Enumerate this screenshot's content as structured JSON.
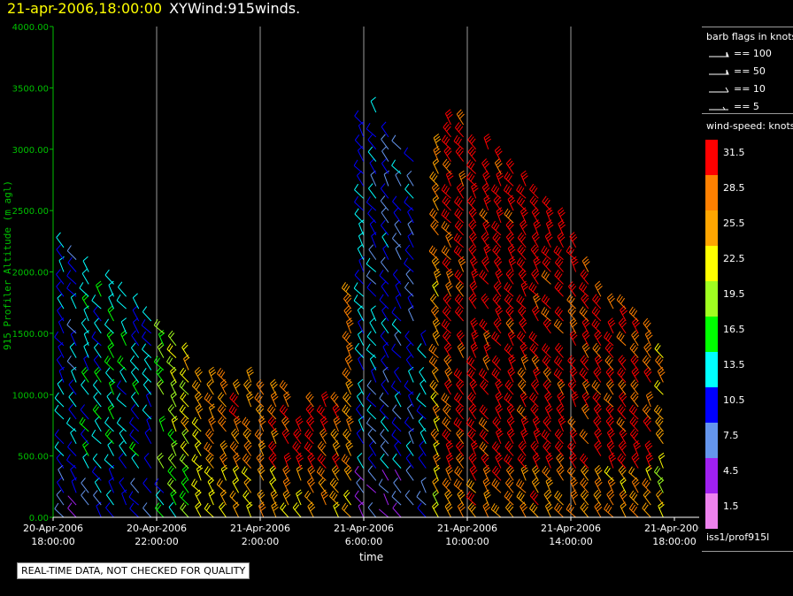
{
  "header": {
    "date_text": "21-apr-2006,18:00:00",
    "product_text": "XYWind:915winds."
  },
  "legend": {
    "barb_title": "barb flags in knots",
    "barb_entries": [
      {
        "label": "== 100",
        "knots": 100
      },
      {
        "label": "== 50",
        "knots": 50
      },
      {
        "label": "== 10",
        "knots": 10
      },
      {
        "label": "== 5",
        "knots": 5
      }
    ],
    "speed_title": "wind-speed: knots",
    "speed_scale": [
      {
        "label": "31.5",
        "color": "#ff0000"
      },
      {
        "label": "28.5",
        "color": "#ff8000"
      },
      {
        "label": "25.5",
        "color": "#ffa500"
      },
      {
        "label": "22.5",
        "color": "#ffff00"
      },
      {
        "label": "19.5",
        "color": "#a0ff20"
      },
      {
        "label": "16.5",
        "color": "#00ff00"
      },
      {
        "label": "13.5",
        "color": "#00ffff"
      },
      {
        "label": "10.5",
        "color": "#0000ff"
      },
      {
        "label": "7.5",
        "color": "#6495ed"
      },
      {
        "label": "4.5",
        "color": "#a020f0"
      },
      {
        "label": "1.5",
        "color": "#ee82ee"
      }
    ],
    "source": "iss1/prof915l"
  },
  "disclaimer": "REAL-TIME DATA, NOT CHECKED FOR QUALITY",
  "chart_data": {
    "type": "wind-barb time-height",
    "ylabel": "915 Profiler Altitude (m agl)",
    "xlabel": "time",
    "ylim": [
      0,
      4000
    ],
    "y_ticks": [
      "0.00",
      "500.00",
      "1000.00",
      "1500.00",
      "2000.00",
      "2500.00",
      "3000.00",
      "3500.00",
      "4000.00"
    ],
    "x_range": [
      "2006-04-20T18:00",
      "2006-04-21T18:00"
    ],
    "x_ticks": [
      {
        "date": "20-Apr-2006",
        "time": "18:00:00"
      },
      {
        "date": "20-Apr-2006",
        "time": "22:00:00"
      },
      {
        "date": "21-Apr-2006",
        "time": "2:00:00"
      },
      {
        "date": "21-Apr-2006",
        "time": "6:00:00"
      },
      {
        "date": "21-Apr-2006",
        "time": "10:00:00"
      },
      {
        "date": "21-Apr-2006",
        "time": "14:00:00"
      },
      {
        "date": "21-Apr-2006",
        "time": "18:00:00"
      }
    ],
    "vertical_gridlines": true,
    "colors": {
      "axis": "#00c000",
      "grid": "#9a9a9a",
      "background": "#000000"
    },
    "profile_interval_hours": 0.5,
    "profiles_dominant_speed_knots": [
      12,
      11,
      13,
      14,
      15,
      14,
      13,
      12,
      18,
      20,
      23,
      25,
      27,
      27,
      28,
      28,
      29,
      29,
      30,
      30,
      31,
      31,
      29,
      28,
      12,
      11,
      10,
      10,
      10,
      12,
      26,
      31,
      32,
      32,
      32,
      32,
      32,
      32,
      32,
      32,
      32,
      32,
      31,
      31,
      30,
      30,
      31,
      30,
      26
    ],
    "profiles_top_altitude_m": [
      2200,
      2100,
      2000,
      1900,
      1900,
      1800,
      1700,
      1600,
      1500,
      1400,
      1300,
      1200,
      1150,
      1100,
      1100,
      1100,
      1050,
      1000,
      1000,
      950,
      900,
      900,
      900,
      1800,
      3200,
      3300,
      3100,
      3000,
      2900,
      1500,
      3100,
      3200,
      3200,
      3100,
      3000,
      2900,
      2800,
      2700,
      2600,
      2500,
      2400,
      2200,
      2000,
      1800,
      1700,
      1700,
      1600,
      1500,
      1300
    ]
  }
}
